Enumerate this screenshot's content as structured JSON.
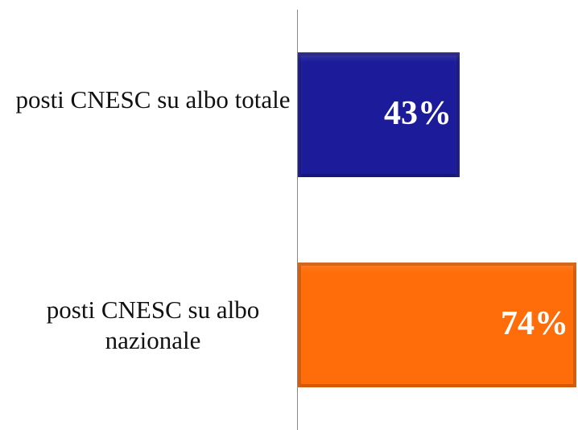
{
  "chart_data": {
    "type": "bar",
    "orientation": "horizontal",
    "categories": [
      "posti CNESC su albo totale",
      "posti CNESC su albo nazionale"
    ],
    "values": [
      43,
      74
    ],
    "value_labels": [
      "43%",
      "74%"
    ],
    "colors": [
      "#1c1c9a",
      "#ff6d0a"
    ],
    "xlim": [
      0,
      74
    ]
  }
}
